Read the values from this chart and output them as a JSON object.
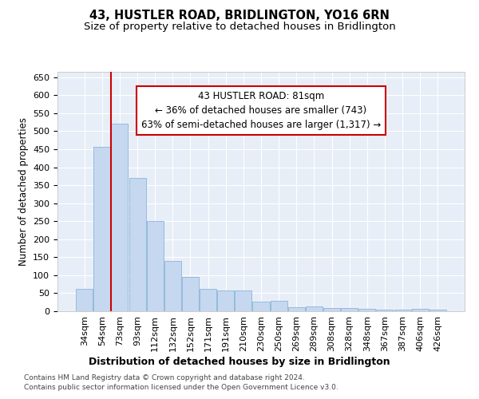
{
  "title": "43, HUSTLER ROAD, BRIDLINGTON, YO16 6RN",
  "subtitle": "Size of property relative to detached houses in Bridlington",
  "xlabel": "Distribution of detached houses by size in Bridlington",
  "ylabel": "Number of detached properties",
  "categories": [
    "34sqm",
    "54sqm",
    "73sqm",
    "93sqm",
    "112sqm",
    "132sqm",
    "152sqm",
    "171sqm",
    "191sqm",
    "210sqm",
    "230sqm",
    "250sqm",
    "269sqm",
    "289sqm",
    "308sqm",
    "328sqm",
    "348sqm",
    "367sqm",
    "387sqm",
    "406sqm",
    "426sqm"
  ],
  "bar_heights": [
    62,
    457,
    520,
    370,
    250,
    140,
    95,
    62,
    58,
    57,
    26,
    28,
    10,
    13,
    8,
    8,
    6,
    5,
    5,
    6,
    5
  ],
  "bar_color": "#c5d8f0",
  "bar_edge_color": "#8ab4d8",
  "annotation_line1": "43 HUSTLER ROAD: 81sqm",
  "annotation_line2": "← 36% of detached houses are smaller (743)",
  "annotation_line3": "63% of semi-detached houses are larger (1,317) →",
  "annotation_box_color": "#ffffff",
  "annotation_box_edge_color": "#cc0000",
  "vline_x": 2,
  "vline_color": "#cc0000",
  "ylim": [
    0,
    665
  ],
  "yticks": [
    0,
    50,
    100,
    150,
    200,
    250,
    300,
    350,
    400,
    450,
    500,
    550,
    600,
    650
  ],
  "plot_bg_color": "#e8eef7",
  "footer_line1": "Contains HM Land Registry data © Crown copyright and database right 2024.",
  "footer_line2": "Contains public sector information licensed under the Open Government Licence v3.0.",
  "title_fontsize": 10.5,
  "subtitle_fontsize": 9.5,
  "xlabel_fontsize": 9,
  "ylabel_fontsize": 8.5,
  "tick_fontsize": 8,
  "annot_fontsize": 8.5
}
